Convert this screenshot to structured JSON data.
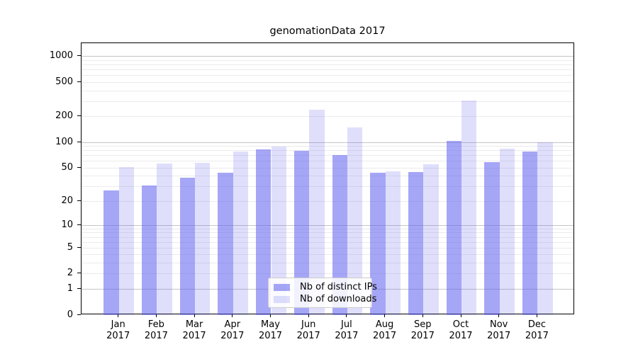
{
  "title": "genomationData 2017",
  "legend": {
    "items": [
      {
        "label": "Nb of distinct IPs",
        "color": "rgba(93,93,240,0.55)"
      },
      {
        "label": "Nb of downloads",
        "color": "rgba(93,93,240,0.20)"
      }
    ]
  },
  "colors": {
    "bar_base": "#5d5df0",
    "grid_major": "#c5c5c5",
    "grid_minor": "#ebebeb",
    "spine": "#000000"
  },
  "chart_data": {
    "type": "bar",
    "title": "genomationData 2017",
    "categories": [
      "Jan 2017",
      "Feb 2017",
      "Mar 2017",
      "Apr 2017",
      "May 2017",
      "Jun 2017",
      "Jul 2017",
      "Aug 2017",
      "Sep 2017",
      "Oct 2017",
      "Nov 2017",
      "Dec 2017"
    ],
    "series": [
      {
        "name": "Nb of distinct IPs",
        "color": "rgba(93,93,240,0.55)",
        "values": [
          27,
          31,
          38,
          44,
          82,
          80,
          71,
          44,
          45,
          105,
          59,
          78
        ]
      },
      {
        "name": "Nb of downloads",
        "color": "rgba(93,93,240,0.20)",
        "values": [
          51,
          56,
          57,
          78,
          90,
          240,
          149,
          46,
          55,
          308,
          84,
          100
        ]
      }
    ],
    "xlabel": "",
    "ylabel": "",
    "y_scale": "log1p",
    "y_ticks": [
      0,
      1,
      2,
      5,
      10,
      20,
      50,
      100,
      200,
      500,
      1000
    ],
    "y_major_grid": [
      1,
      10,
      100,
      1000
    ],
    "ylim": [
      0,
      1430
    ],
    "grid": true,
    "legend_position": "lower center"
  }
}
